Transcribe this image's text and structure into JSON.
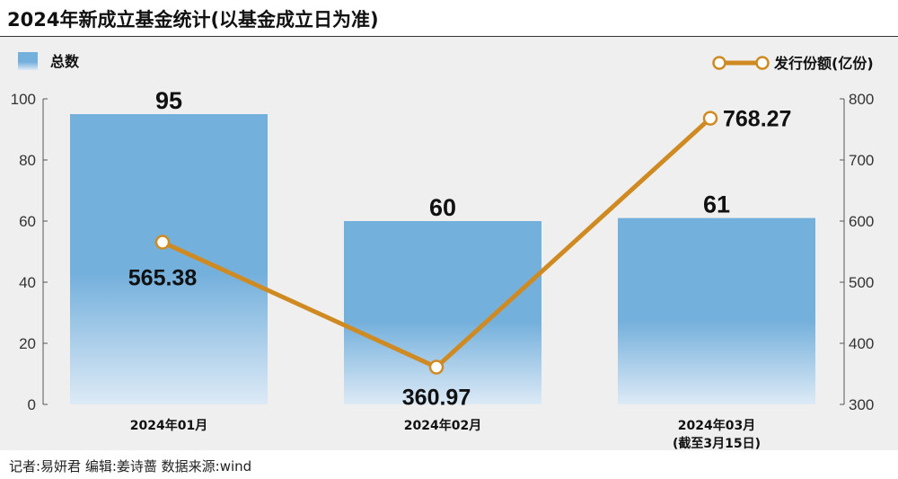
{
  "title": "2024年新成立基金统计(以基金成立日为准)",
  "footer": "记者:易妍君   编辑:姜诗蔷   数据来源:wind",
  "colors": {
    "bar_top": "#74b0dc",
    "bar_bottom": "#ddeaf6",
    "line": "#d08a22",
    "marker_fill": "#ffffff",
    "background": "#efefef"
  },
  "chart_data": {
    "type": "bar",
    "categories": [
      "2024年01月",
      "2024年02月",
      "2024年03月"
    ],
    "category_sublabels": [
      "",
      "",
      "(截至3月15日)"
    ],
    "series": [
      {
        "name": "总数",
        "type": "bar",
        "axis": "left",
        "values": [
          95,
          60,
          61
        ],
        "labels": [
          "95",
          "60",
          "61"
        ]
      },
      {
        "name": "发行份额(亿份)",
        "type": "line",
        "axis": "right",
        "values": [
          565.38,
          360.97,
          768.27
        ],
        "labels": [
          "565.38",
          "360.97",
          "768.27"
        ]
      }
    ],
    "y_left": {
      "ylim": [
        0,
        100
      ],
      "ticks": [
        "0",
        "20",
        "40",
        "60",
        "80",
        "100"
      ]
    },
    "y_right": {
      "ylim": [
        300,
        800
      ],
      "ticks": [
        "300",
        "400",
        "500",
        "600",
        "700",
        "800"
      ]
    },
    "grid": false,
    "legend": "top"
  }
}
